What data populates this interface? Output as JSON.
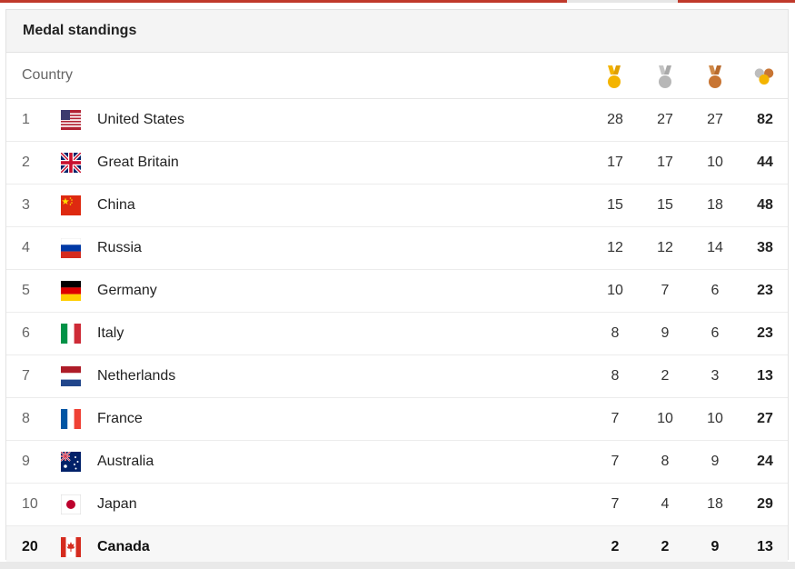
{
  "panel": {
    "title": "Medal standings",
    "column_country": "Country",
    "medal_icons": [
      {
        "name": "gold-medal-icon",
        "color": "#f4b400"
      },
      {
        "name": "silver-medal-icon",
        "color": "#b7b7b7"
      },
      {
        "name": "bronze-medal-icon",
        "color": "#c87533"
      },
      {
        "name": "total-medals-icon",
        "color": "#f4b400"
      }
    ]
  },
  "standings": [
    {
      "rank": "1",
      "country": "United States",
      "flag": "us-flag-icon",
      "gold": "28",
      "silver": "27",
      "bronze": "27",
      "total": "82"
    },
    {
      "rank": "2",
      "country": "Great Britain",
      "flag": "gb-flag-icon",
      "gold": "17",
      "silver": "17",
      "bronze": "10",
      "total": "44"
    },
    {
      "rank": "3",
      "country": "China",
      "flag": "cn-flag-icon",
      "gold": "15",
      "silver": "15",
      "bronze": "18",
      "total": "48"
    },
    {
      "rank": "4",
      "country": "Russia",
      "flag": "ru-flag-icon",
      "gold": "12",
      "silver": "12",
      "bronze": "14",
      "total": "38"
    },
    {
      "rank": "5",
      "country": "Germany",
      "flag": "de-flag-icon",
      "gold": "10",
      "silver": "7",
      "bronze": "6",
      "total": "23"
    },
    {
      "rank": "6",
      "country": "Italy",
      "flag": "it-flag-icon",
      "gold": "8",
      "silver": "9",
      "bronze": "6",
      "total": "23"
    },
    {
      "rank": "7",
      "country": "Netherlands",
      "flag": "nl-flag-icon",
      "gold": "8",
      "silver": "2",
      "bronze": "3",
      "total": "13"
    },
    {
      "rank": "8",
      "country": "France",
      "flag": "fr-flag-icon",
      "gold": "7",
      "silver": "10",
      "bronze": "10",
      "total": "27"
    },
    {
      "rank": "9",
      "country": "Australia",
      "flag": "au-flag-icon",
      "gold": "7",
      "silver": "8",
      "bronze": "9",
      "total": "24"
    },
    {
      "rank": "10",
      "country": "Japan",
      "flag": "jp-flag-icon",
      "gold": "7",
      "silver": "4",
      "bronze": "18",
      "total": "29"
    },
    {
      "rank": "20",
      "country": "Canada",
      "flag": "ca-flag-icon",
      "gold": "2",
      "silver": "2",
      "bronze": "9",
      "total": "13",
      "highlighted": true
    }
  ]
}
